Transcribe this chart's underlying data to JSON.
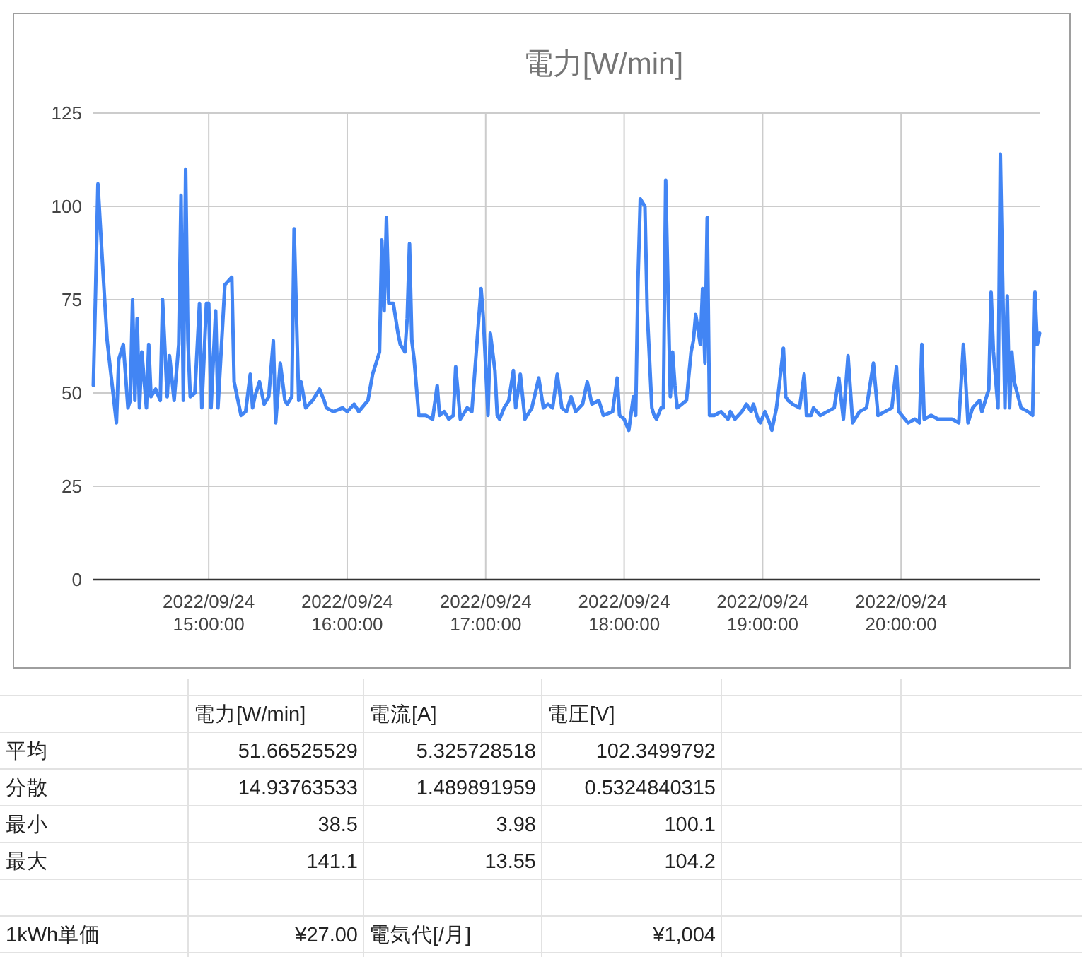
{
  "chart_data": [
    {
      "type": "line",
      "title": "電力[W/min]",
      "color": "#4285f4",
      "grid": true,
      "ylim": [
        0,
        125
      ],
      "yticks": [
        0,
        25,
        50,
        75,
        100,
        125
      ],
      "xlim": [
        "2022-09-24T14:10",
        "2022-09-24T21:00"
      ],
      "xticks": [
        {
          "value": "2022-09-24T15:00",
          "label": "2022/09/24 15:00:00"
        },
        {
          "value": "2022-09-24T16:00",
          "label": "2022/09/24 16:00:00"
        },
        {
          "value": "2022-09-24T17:00",
          "label": "2022/09/24 17:00:00"
        },
        {
          "value": "2022-09-24T18:00",
          "label": "2022/09/24 18:00:00"
        },
        {
          "value": "2022-09-24T19:00",
          "label": "2022/09/24 19:00:00"
        },
        {
          "value": "2022-09-24T20:00",
          "label": "2022/09/24 20:00:00"
        }
      ],
      "x": [
        "2022-09-24T14:10",
        "2022-09-24T14:11",
        "2022-09-24T14:12",
        "2022-09-24T14:13",
        "2022-09-24T14:15",
        "2022-09-24T14:16",
        "2022-09-24T14:18",
        "2022-09-24T14:20",
        "2022-09-24T14:21",
        "2022-09-24T14:22",
        "2022-09-24T14:23",
        "2022-09-24T14:25",
        "2022-09-24T14:26",
        "2022-09-24T14:27",
        "2022-09-24T14:28",
        "2022-09-24T14:29",
        "2022-09-24T14:30",
        "2022-09-24T14:31",
        "2022-09-24T14:33",
        "2022-09-24T14:34",
        "2022-09-24T14:35",
        "2022-09-24T14:37",
        "2022-09-24T14:39",
        "2022-09-24T14:40",
        "2022-09-24T14:42",
        "2022-09-24T14:43",
        "2022-09-24T14:45",
        "2022-09-24T14:47",
        "2022-09-24T14:48",
        "2022-09-24T14:49",
        "2022-09-24T14:50",
        "2022-09-24T14:51",
        "2022-09-24T14:52",
        "2022-09-24T14:54",
        "2022-09-24T14:56",
        "2022-09-24T14:57",
        "2022-09-24T14:59",
        "2022-09-24T15:00",
        "2022-09-24T15:01",
        "2022-09-24T15:03",
        "2022-09-24T15:04",
        "2022-09-24T15:07",
        "2022-09-24T15:10",
        "2022-09-24T15:11",
        "2022-09-24T15:14",
        "2022-09-24T15:16",
        "2022-09-24T15:18",
        "2022-09-24T15:19",
        "2022-09-24T15:20",
        "2022-09-24T15:22",
        "2022-09-24T15:24",
        "2022-09-24T15:26",
        "2022-09-24T15:28",
        "2022-09-24T15:29",
        "2022-09-24T15:31",
        "2022-09-24T15:33",
        "2022-09-24T15:34",
        "2022-09-24T15:36",
        "2022-09-24T15:37",
        "2022-09-24T15:39",
        "2022-09-24T15:40",
        "2022-09-24T15:42",
        "2022-09-24T15:45",
        "2022-09-24T15:48",
        "2022-09-24T15:50",
        "2022-09-24T15:51",
        "2022-09-24T15:54",
        "2022-09-24T15:58",
        "2022-09-24T16:00",
        "2022-09-24T16:03",
        "2022-09-24T16:05",
        "2022-09-24T16:09",
        "2022-09-24T16:11",
        "2022-09-24T16:13",
        "2022-09-24T16:14",
        "2022-09-24T16:15",
        "2022-09-24T16:16",
        "2022-09-24T16:17",
        "2022-09-24T16:18",
        "2022-09-24T16:20",
        "2022-09-24T16:21",
        "2022-09-24T16:22",
        "2022-09-24T16:23",
        "2022-09-24T16:25",
        "2022-09-24T16:26",
        "2022-09-24T16:27",
        "2022-09-24T16:28",
        "2022-09-24T16:29",
        "2022-09-24T16:31",
        "2022-09-24T16:34",
        "2022-09-24T16:37",
        "2022-09-24T16:39",
        "2022-09-24T16:40",
        "2022-09-24T16:42",
        "2022-09-24T16:44",
        "2022-09-24T16:46",
        "2022-09-24T16:47",
        "2022-09-24T16:49",
        "2022-09-24T16:52",
        "2022-09-24T16:54",
        "2022-09-24T16:57",
        "2022-09-24T16:58",
        "2022-09-24T16:59",
        "2022-09-24T17:01",
        "2022-09-24T17:02",
        "2022-09-24T17:03",
        "2022-09-24T17:04",
        "2022-09-24T17:05",
        "2022-09-24T17:06",
        "2022-09-24T17:08",
        "2022-09-24T17:10",
        "2022-09-24T17:12",
        "2022-09-24T17:13",
        "2022-09-24T17:15",
        "2022-09-24T17:17",
        "2022-09-24T17:20",
        "2022-09-24T17:23",
        "2022-09-24T17:25",
        "2022-09-24T17:27",
        "2022-09-24T17:29",
        "2022-09-24T17:31",
        "2022-09-24T17:33",
        "2022-09-24T17:35",
        "2022-09-24T17:37",
        "2022-09-24T17:39",
        "2022-09-24T17:42",
        "2022-09-24T17:44",
        "2022-09-24T17:46",
        "2022-09-24T17:49",
        "2022-09-24T17:51",
        "2022-09-24T17:55",
        "2022-09-24T17:57",
        "2022-09-24T17:58",
        "2022-09-24T18:00",
        "2022-09-24T18:02",
        "2022-09-24T18:04",
        "2022-09-24T18:05",
        "2022-09-24T18:06",
        "2022-09-24T18:07",
        "2022-09-24T18:09",
        "2022-09-24T18:10",
        "2022-09-24T18:12",
        "2022-09-24T18:13",
        "2022-09-24T18:14",
        "2022-09-24T18:16",
        "2022-09-24T18:17",
        "2022-09-24T18:18",
        "2022-09-24T18:20",
        "2022-09-24T18:21",
        "2022-09-24T18:22",
        "2022-09-24T18:23",
        "2022-09-24T18:25",
        "2022-09-24T18:27",
        "2022-09-24T18:29",
        "2022-09-24T18:30",
        "2022-09-24T18:31",
        "2022-09-24T18:33",
        "2022-09-24T18:34",
        "2022-09-24T18:35",
        "2022-09-24T18:36",
        "2022-09-24T18:37",
        "2022-09-24T18:39",
        "2022-09-24T18:42",
        "2022-09-24T18:45",
        "2022-09-24T18:46",
        "2022-09-24T18:48",
        "2022-09-24T18:51",
        "2022-09-24T18:53",
        "2022-09-24T18:55",
        "2022-09-24T18:56",
        "2022-09-24T18:58",
        "2022-09-24T18:59",
        "2022-09-24T19:01",
        "2022-09-24T19:03",
        "2022-09-24T19:04",
        "2022-09-24T19:06",
        "2022-09-24T19:07",
        "2022-09-24T19:09",
        "2022-09-24T19:10",
        "2022-09-24T19:11",
        "2022-09-24T19:13",
        "2022-09-24T19:16",
        "2022-09-24T19:18",
        "2022-09-24T19:19",
        "2022-09-24T19:21",
        "2022-09-24T19:22",
        "2022-09-24T19:25",
        "2022-09-24T19:28",
        "2022-09-24T19:31",
        "2022-09-24T19:33",
        "2022-09-24T19:35",
        "2022-09-24T19:37",
        "2022-09-24T19:39",
        "2022-09-24T19:42",
        "2022-09-24T19:45",
        "2022-09-24T19:48",
        "2022-09-24T19:50",
        "2022-09-24T19:53",
        "2022-09-24T19:56",
        "2022-09-24T19:58",
        "2022-09-24T19:59",
        "2022-09-24T20:03",
        "2022-09-24T20:06",
        "2022-09-24T20:08",
        "2022-09-24T20:09",
        "2022-09-24T20:10",
        "2022-09-24T20:13",
        "2022-09-24T20:16",
        "2022-09-24T20:19",
        "2022-09-24T20:22",
        "2022-09-24T20:25",
        "2022-09-24T20:27",
        "2022-09-24T20:28",
        "2022-09-24T20:29",
        "2022-09-24T20:31",
        "2022-09-24T20:34",
        "2022-09-24T20:35",
        "2022-09-24T20:38",
        "2022-09-24T20:39",
        "2022-09-24T20:40",
        "2022-09-24T20:42",
        "2022-09-24T20:43",
        "2022-09-24T20:45",
        "2022-09-24T20:46",
        "2022-09-24T20:47",
        "2022-09-24T20:48",
        "2022-09-24T20:49",
        "2022-09-24T20:52",
        "2022-09-24T20:55",
        "2022-09-24T20:57",
        "2022-09-24T20:58",
        "2022-09-24T20:59",
        "2022-09-24T21:00"
      ],
      "values": [
        52,
        78,
        106,
        95,
        74,
        64,
        53,
        42,
        59,
        61,
        63,
        46,
        48,
        75,
        48,
        70,
        46,
        61,
        46,
        63,
        49,
        51,
        48,
        75,
        49,
        60,
        48,
        63,
        103,
        48,
        110,
        64,
        49,
        50,
        74,
        46,
        74,
        74,
        46,
        72,
        46,
        79,
        81,
        53,
        44,
        45,
        55,
        46,
        49,
        53,
        47,
        49,
        64,
        42,
        58,
        48,
        47,
        49,
        94,
        48,
        53,
        46,
        48,
        51,
        48,
        46,
        45,
        46,
        45,
        47,
        45,
        48,
        55,
        59,
        61,
        91,
        72,
        97,
        74,
        74,
        70,
        66,
        63,
        61,
        70,
        90,
        64,
        59,
        44,
        44,
        43,
        52,
        44,
        45,
        43,
        44,
        57,
        43,
        46,
        45,
        70,
        78,
        70,
        44,
        66,
        61,
        56,
        44,
        43,
        46,
        48,
        56,
        46,
        55,
        43,
        46,
        54,
        46,
        47,
        46,
        55,
        46,
        45,
        49,
        45,
        47,
        53,
        47,
        48,
        44,
        45,
        54,
        44,
        43,
        40,
        49,
        44,
        80,
        102,
        100,
        72,
        46,
        44,
        43,
        46,
        46,
        107,
        49,
        61,
        52,
        46,
        47,
        48,
        61,
        64,
        71,
        63,
        78,
        58,
        97,
        44,
        44,
        45,
        43,
        45,
        43,
        45,
        47,
        45,
        47,
        43,
        42,
        45,
        42,
        40,
        46,
        51,
        62,
        49,
        48,
        47,
        46,
        55,
        44,
        44,
        46,
        44,
        45,
        46,
        54,
        43,
        60,
        42,
        45,
        46,
        58,
        44,
        45,
        46,
        57,
        45,
        42,
        43,
        42,
        63,
        43,
        44,
        43,
        43,
        43,
        42,
        63,
        53,
        42,
        46,
        48,
        45,
        51,
        77,
        61,
        46,
        114,
        46,
        76,
        46,
        61,
        53,
        46,
        45,
        44,
        77,
        63,
        66
      ]
    },
    {
      "type": "other",
      "annotations": [
        "電力[W/min]",
        "電流[A]",
        "電圧[V]",
        "平均",
        "51.66525529",
        "5.325728518",
        "102.3499792",
        "分散",
        "14.93763533",
        "1.489891959",
        "0.5324840315",
        "最小",
        "38.5",
        "3.98",
        "100.1",
        "最大",
        "141.1",
        "13.55",
        "104.2",
        "1kWh単価",
        "¥27.00",
        "電気代[/月]",
        "¥1,004"
      ]
    }
  ]
}
